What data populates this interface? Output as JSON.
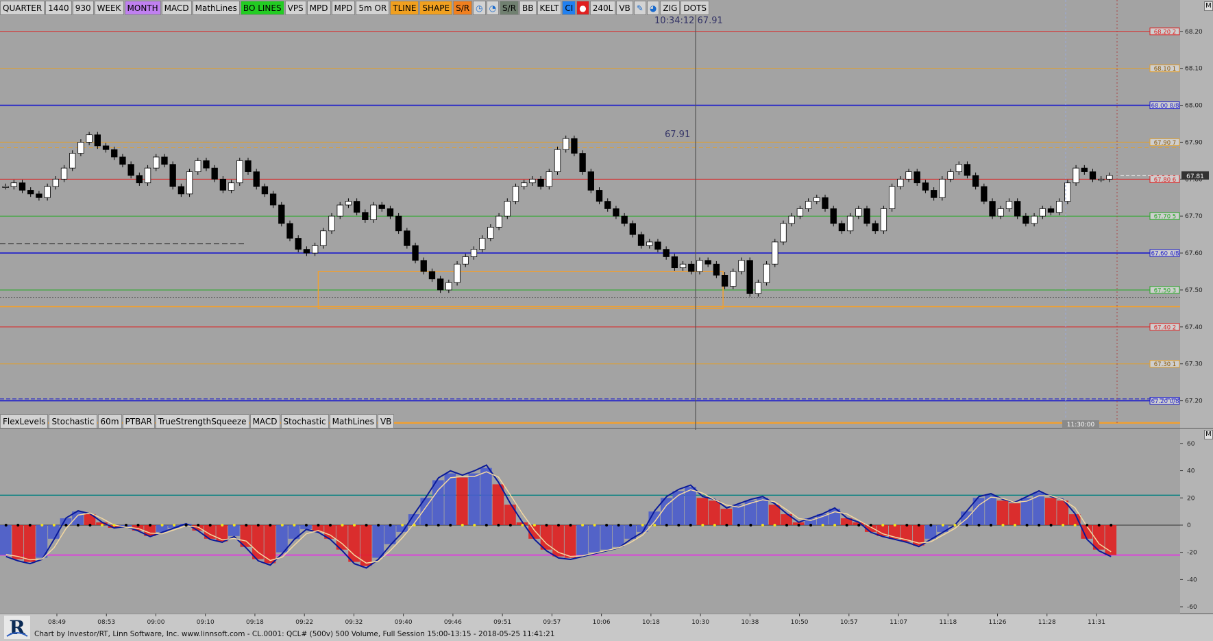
{
  "toolbar": {
    "buttons": [
      {
        "label": "QUARTER",
        "bg": "#d3d3d3"
      },
      {
        "label": "1440",
        "bg": "#d3d3d3"
      },
      {
        "label": "930",
        "bg": "#d3d3d3"
      },
      {
        "label": "WEEK",
        "bg": "#d3d3d3"
      },
      {
        "label": "MONTH",
        "bg": "#c080f0"
      },
      {
        "label": "MACD",
        "bg": "#d3d3d3"
      },
      {
        "label": "MathLines",
        "bg": "#d3d3d3"
      },
      {
        "label": "BO LINES",
        "bg": "#22cc22"
      },
      {
        "label": "VPS",
        "bg": "#d3d3d3"
      },
      {
        "label": "MPD",
        "bg": "#d3d3d3"
      },
      {
        "label": "MPD",
        "bg": "#d3d3d3"
      },
      {
        "label": "5m OR",
        "bg": "#d3d3d3"
      },
      {
        "label": "TLINE",
        "bg": "#f0a020"
      },
      {
        "label": "SHAPE",
        "bg": "#f0a020"
      },
      {
        "label": "S/R",
        "bg": "#f08020"
      },
      {
        "label": "clock-icon",
        "bg": "#d3d3d3",
        "icon": true
      },
      {
        "label": "stopwatch-icon",
        "bg": "#d3d3d3",
        "icon": true
      },
      {
        "label": "S/R",
        "bg": "#708070"
      },
      {
        "label": "BB",
        "bg": "#d3d3d3"
      },
      {
        "label": "KELT",
        "bg": "#d3d3d3"
      },
      {
        "label": "CI",
        "bg": "#2080f0"
      },
      {
        "label": "record-icon",
        "bg": "#e02020",
        "icon": true
      },
      {
        "label": "240L",
        "bg": "#d3d3d3"
      },
      {
        "label": "VB",
        "bg": "#d3d3d3"
      },
      {
        "label": "pencil-icon",
        "bg": "#d3d3d3",
        "icon": true
      },
      {
        "label": "timer-icon",
        "bg": "#d3d3d3",
        "icon": true
      },
      {
        "label": "ZIG",
        "bg": "#d3d3d3"
      },
      {
        "label": "DOTS",
        "bg": "#d3d3d3"
      }
    ]
  },
  "indicator_bar": {
    "buttons": [
      "FlexLevels",
      "Stochastic",
      "60m",
      "PTBAR",
      "TrueStrengthSqueeze",
      "MACD",
      "Stochastic",
      "MathLines",
      "VB"
    ]
  },
  "crosshair": {
    "time": "10:34:12",
    "price": "67.91"
  },
  "price_label_mid": "67.91",
  "current_price_tag": "67.81",
  "time_tag": "11:30:00",
  "footer": "Chart by Investor/RT, Linn Software, Inc. www.linnsoft.com - CL.0001: QCL# (500v) 500 Volume, Full Session 15:00-13:15 - 2018-05-25 11:41:21",
  "chart_data": [
    {
      "type": "line",
      "panel": "price",
      "title": "",
      "ylim": [
        67.125,
        68.285
      ],
      "y_ticks": [
        "68.20",
        "68.10",
        "68.00",
        "67.90",
        "67.80",
        "67.70",
        "67.60",
        "67.50",
        "67.40",
        "67.30",
        "67.20"
      ],
      "x_ticks": [
        "08:49",
        "08:53",
        "09:00",
        "09:10",
        "09:18",
        "09:22",
        "09:32",
        "09:40",
        "09:46",
        "09:51",
        "09:57",
        "10:06",
        "10:18",
        "10:30",
        "10:38",
        "10:50",
        "10:57",
        "11:07",
        "11:18",
        "11:26",
        "11:28",
        "11:31"
      ],
      "levels": [
        {
          "label": "68.20 2",
          "price": 68.2,
          "color": "#dd2222"
        },
        {
          "label": "68.10 1",
          "price": 68.1,
          "color": "#e0a030"
        },
        {
          "label": "68.00 8/8",
          "price": 68.0,
          "color": "#1a1acc"
        },
        {
          "label": "67.90 7",
          "price": 67.9,
          "color": "#e0a030"
        },
        {
          "label": "67.80 6",
          "price": 67.8,
          "color": "#dd2222"
        },
        {
          "label": "67.70 5",
          "price": 67.7,
          "color": "#22aa22"
        },
        {
          "label": "67.60 4/8",
          "price": 67.6,
          "color": "#1a1acc"
        },
        {
          "label": "67.50 3",
          "price": 67.5,
          "color": "#22aa22"
        },
        {
          "label": "67.40 2",
          "price": 67.4,
          "color": "#dd2222"
        },
        {
          "label": "67.30 1",
          "price": 67.3,
          "color": "#e0a030"
        },
        {
          "label": "67.20 0/8",
          "price": 67.2,
          "color": "#1a1acc"
        }
      ],
      "closes": [
        67.78,
        67.79,
        67.77,
        67.76,
        67.75,
        67.78,
        67.8,
        67.83,
        67.87,
        67.9,
        67.92,
        67.89,
        67.88,
        67.86,
        67.84,
        67.81,
        67.79,
        67.83,
        67.86,
        67.84,
        67.78,
        67.76,
        67.82,
        67.85,
        67.83,
        67.8,
        67.77,
        67.79,
        67.85,
        67.82,
        67.78,
        67.76,
        67.73,
        67.68,
        67.64,
        67.61,
        67.6,
        67.62,
        67.66,
        67.7,
        67.73,
        67.74,
        67.71,
        67.69,
        67.73,
        67.72,
        67.7,
        67.66,
        67.62,
        67.58,
        67.55,
        67.53,
        67.5,
        67.52,
        67.57,
        67.59,
        67.61,
        67.64,
        67.67,
        67.7,
        67.74,
        67.78,
        67.79,
        67.8,
        67.78,
        67.82,
        67.88,
        67.91,
        67.87,
        67.82,
        67.77,
        67.74,
        67.72,
        67.7,
        67.68,
        67.65,
        67.62,
        67.63,
        67.61,
        67.59,
        67.56,
        67.57,
        67.55,
        67.58,
        67.57,
        67.54,
        67.51,
        67.55,
        67.58,
        67.49,
        67.52,
        67.57,
        67.63,
        67.68,
        67.7,
        67.72,
        67.74,
        67.75,
        67.72,
        67.68,
        67.66,
        67.7,
        67.72,
        67.68,
        67.66,
        67.72,
        67.78,
        67.8,
        67.82,
        67.79,
        67.77,
        67.75,
        67.8,
        67.82,
        67.84,
        67.81,
        67.78,
        67.74,
        67.7,
        67.72,
        67.74,
        67.7,
        67.68,
        67.7,
        67.72,
        67.71,
        67.74,
        67.79,
        67.83,
        67.82,
        67.8,
        67.8,
        67.81
      ],
      "rectangle": {
        "price_top": 67.55,
        "price_bottom": 67.45,
        "time_from": "09:32",
        "time_to": "10:30",
        "color": "#f0a030"
      }
    },
    {
      "type": "bar",
      "panel": "oscillator",
      "ylim": [
        -65,
        70
      ],
      "y_ticks": [
        60,
        40,
        20,
        0,
        -20,
        -40,
        -60
      ],
      "levels": [
        {
          "value": 22,
          "color": "#008080"
        },
        {
          "value": -22,
          "color": "#ee22ee"
        }
      ],
      "values": [
        -22,
        -25,
        -27,
        -24,
        -10,
        5,
        10,
        8,
        2,
        -2,
        -1,
        -4,
        -8,
        -5,
        -2,
        1,
        -4,
        -10,
        -12,
        -8,
        -16,
        -25,
        -28,
        -20,
        -10,
        -3,
        -5,
        -10,
        -18,
        -27,
        -30,
        -24,
        -14,
        -5,
        8,
        20,
        33,
        38,
        35,
        38,
        42,
        30,
        15,
        2,
        -10,
        -18,
        -23,
        -24,
        -22,
        -20,
        -18,
        -16,
        -10,
        -5,
        10,
        20,
        25,
        28,
        20,
        18,
        12,
        15,
        18,
        20,
        15,
        8,
        2,
        5,
        8,
        12,
        5,
        2,
        -5,
        -8,
        -10,
        -12,
        -15,
        -10,
        -5,
        0,
        10,
        20,
        22,
        18,
        16,
        20,
        24,
        20,
        18,
        8,
        -10,
        -18,
        -22
      ]
    }
  ]
}
